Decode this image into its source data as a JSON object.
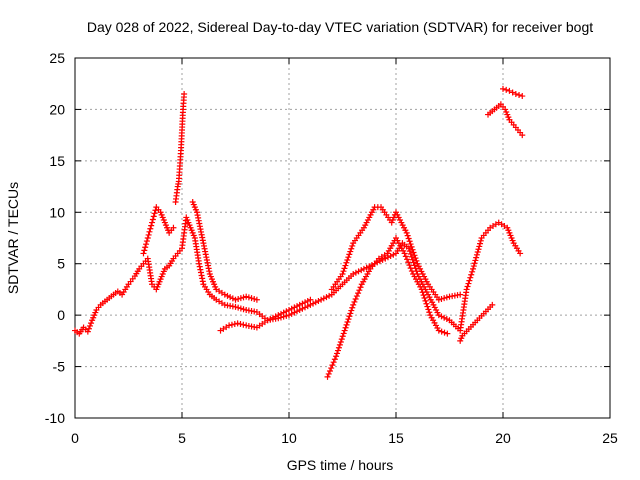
{
  "chart_data": {
    "type": "scatter",
    "title": "Day 028 of 2022, Sidereal Day-to-day VTEC variation (SDTVAR) for receiver bogt",
    "xlabel": "GPS time / hours",
    "ylabel": "SDTVAR / TECUs",
    "xlim": [
      0,
      25
    ],
    "ylim": [
      -10,
      25
    ],
    "xticks": [
      0,
      5,
      10,
      15,
      20,
      25
    ],
    "yticks": [
      -10,
      -5,
      0,
      5,
      10,
      15,
      20,
      25
    ],
    "grid": true,
    "marker": "+",
    "color": "#ff0000",
    "series": [
      {
        "name": "main",
        "x": [
          0,
          0.2,
          0.4,
          0.6,
          0.8,
          1.0,
          1.2,
          1.5,
          1.8,
          2.0,
          2.2,
          2.5,
          2.8,
          3.0,
          3.2,
          3.4,
          3.6,
          3.8,
          4.0,
          4.2,
          4.4,
          4.6,
          4.8,
          5.0,
          5.2,
          5.4,
          5.6,
          5.8,
          6.0,
          6.3,
          6.6,
          7.0,
          7.5,
          8.0,
          8.5,
          9.0,
          9.5,
          10.0,
          10.5,
          11.0,
          11.5,
          12.0,
          12.5,
          13.0,
          13.5,
          14.0,
          14.5,
          15.0,
          15.3,
          15.6,
          16.0,
          16.5,
          17.0,
          17.5,
          18.0,
          18.3,
          18.6,
          19.0,
          19.4,
          19.8,
          20.2,
          20.5,
          20.8
        ],
        "y": [
          -1.5,
          -1.8,
          -1.2,
          -1.6,
          -0.5,
          0.5,
          1.0,
          1.5,
          2.0,
          2.3,
          2.0,
          3.0,
          3.8,
          4.5,
          5.0,
          5.5,
          3.0,
          2.5,
          3.5,
          4.5,
          4.8,
          5.5,
          6.0,
          6.5,
          9.5,
          8.5,
          7.5,
          5.0,
          3.0,
          2.0,
          1.5,
          1.0,
          0.8,
          0.5,
          0.3,
          -0.5,
          -0.3,
          0.0,
          0.5,
          1.0,
          1.5,
          2.0,
          3.0,
          4.0,
          4.5,
          5.0,
          5.5,
          6.0,
          7.0,
          6.5,
          4.0,
          2.0,
          0.0,
          -0.5,
          -1.5,
          2.5,
          4.5,
          7.5,
          8.5,
          9.0,
          8.5,
          7.0,
          6.0
        ]
      },
      {
        "name": "upper",
        "x": [
          12.0,
          12.5,
          13.0,
          13.5,
          14.0,
          14.3,
          14.8,
          15.0,
          15.5,
          16.0,
          16.5,
          17.0,
          17.5,
          18.0
        ],
        "y": [
          2.5,
          4.0,
          7.0,
          8.5,
          10.5,
          10.5,
          9.0,
          10.0,
          8.0,
          5.0,
          3.0,
          1.5,
          1.8,
          2.0
        ]
      },
      {
        "name": "descent",
        "x": [
          5.5,
          5.7,
          6.0,
          6.3,
          6.6,
          7.0,
          7.5,
          8.0,
          8.5
        ],
        "y": [
          11.0,
          10.0,
          7.0,
          4.0,
          2.5,
          2.0,
          1.5,
          1.8,
          1.5
        ]
      },
      {
        "name": "lower",
        "x": [
          6.8,
          7.2,
          7.6,
          8.0,
          8.5,
          9.0,
          9.5,
          10.0,
          10.5,
          11.0
        ],
        "y": [
          -1.5,
          -1.0,
          -0.8,
          -1.0,
          -1.2,
          -0.5,
          0.0,
          0.5,
          1.0,
          1.5
        ]
      },
      {
        "name": "drop",
        "x": [
          11.8,
          12.2,
          12.6,
          13.0,
          13.4,
          13.8,
          14.2,
          14.6,
          15.0,
          15.4,
          15.8,
          16.2,
          16.6,
          17.0,
          17.4
        ],
        "y": [
          -6.0,
          -4.0,
          -1.5,
          1.0,
          3.0,
          4.5,
          5.5,
          6.0,
          7.5,
          6.0,
          4.0,
          2.5,
          0.0,
          -1.5,
          -1.8
        ]
      },
      {
        "name": "left-rise",
        "x": [
          3.2,
          3.4,
          3.6,
          3.8,
          4.0,
          4.2,
          4.4,
          4.6
        ],
        "y": [
          6.0,
          7.5,
          9.0,
          10.5,
          10.0,
          9.0,
          8.0,
          8.5
        ]
      },
      {
        "name": "spike",
        "x": [
          4.7,
          4.8,
          4.85,
          4.9,
          4.95,
          5.0,
          5.05,
          5.1
        ],
        "y": [
          11.0,
          12.5,
          13.0,
          14.5,
          16.0,
          18.0,
          20.0,
          21.5
        ]
      },
      {
        "name": "late-high",
        "x": [
          19.3,
          19.6,
          19.9,
          20.1,
          20.3,
          20.5,
          20.7,
          20.9
        ],
        "y": [
          19.5,
          20.0,
          20.5,
          20.0,
          19.0,
          18.5,
          18.0,
          17.5
        ]
      },
      {
        "name": "late-top",
        "x": [
          20.0,
          20.3,
          20.6,
          20.9
        ],
        "y": [
          22.0,
          21.8,
          21.5,
          21.3
        ]
      },
      {
        "name": "isolated",
        "x": [
          18.0,
          18.1,
          19.5
        ],
        "y": [
          -2.5,
          -2.0,
          1.0
        ]
      }
    ]
  }
}
